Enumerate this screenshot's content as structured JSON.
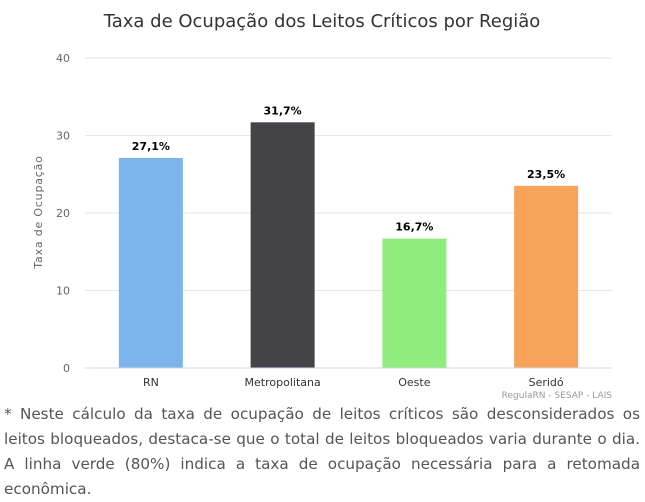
{
  "chart_data": {
    "type": "bar",
    "title": "Taxa de Ocupação dos Leitos Críticos por Região",
    "ylabel": "Taxa de Ocupação",
    "xlabel": "",
    "categories": [
      "RN",
      "Metropolitana",
      "Oeste",
      "Seridó"
    ],
    "values": [
      27.1,
      31.7,
      16.7,
      23.5
    ],
    "data_labels": [
      "27,1%",
      "31,7%",
      "16,7%",
      "23,5%"
    ],
    "colors": [
      "#7cb5ec",
      "#434348",
      "#90ed7d",
      "#f7a35c"
    ],
    "ylim": [
      0,
      40
    ],
    "yticks": [
      0,
      10,
      20,
      30,
      40
    ],
    "grid": true,
    "legend": "none",
    "credits": "RegulaRN - SESAP - LAIS"
  },
  "note": "* Neste cálculo da taxa de ocupação de leitos críticos são desconsiderados os leitos bloqueados, destaca-se que o total de leitos bloqueados varia durante o dia. A linha verde (80%) indica a taxa de ocupação necessária para a retomada econômica."
}
